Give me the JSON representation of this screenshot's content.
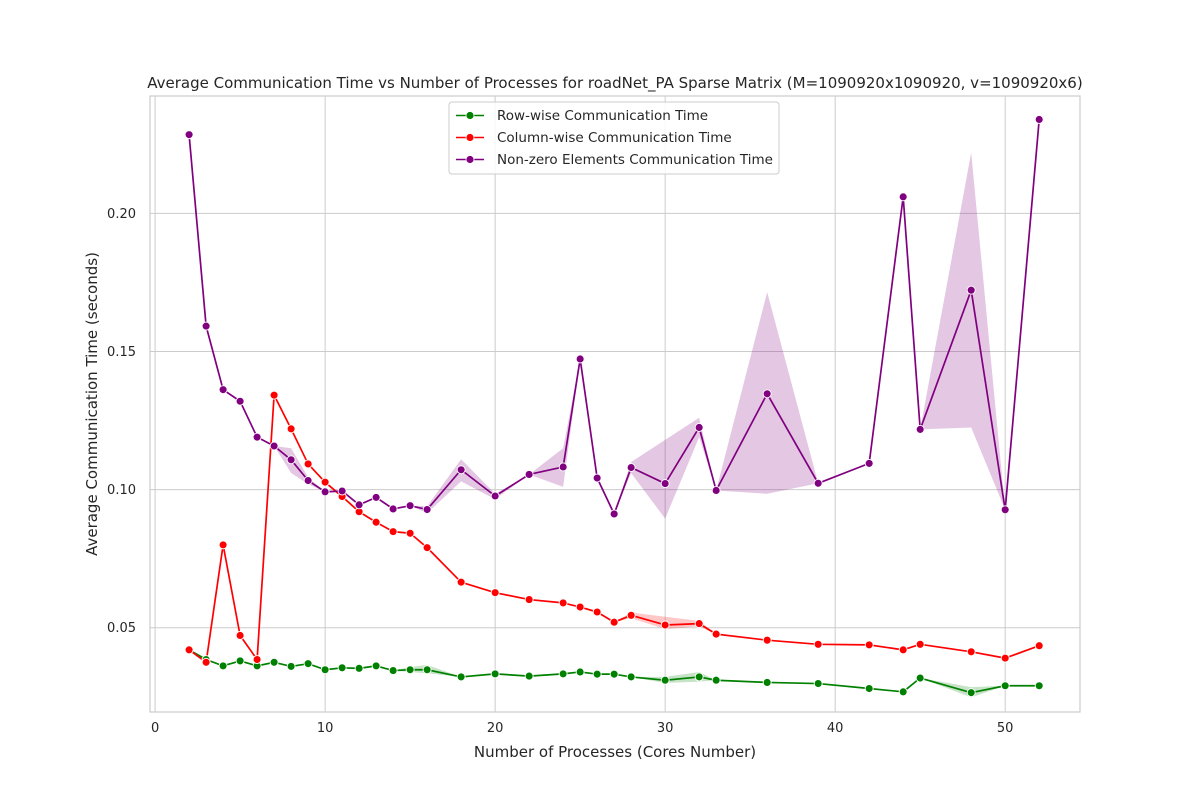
{
  "chart_data": {
    "type": "line",
    "title": "Average Communication Time vs Number of Processes for roadNet_PA Sparse Matrix (M=1090920x1090920, v=1090920x6)",
    "xlabel": "Number of Processes (Cores Number)",
    "ylabel": "Average Communication Time (seconds)",
    "xlim": [
      -0.3,
      54.4
    ],
    "ylim": [
      0.0195,
      0.2425
    ],
    "xticks": [
      0,
      10,
      20,
      30,
      40,
      50
    ],
    "yticks": [
      0.05,
      0.1,
      0.15,
      0.2
    ],
    "ytick_labels": [
      "0.05",
      "0.10",
      "0.15",
      "0.20"
    ],
    "grid": true,
    "legend_position": "top-center",
    "series": [
      {
        "name": "Row-wise Communication Time",
        "color": "#008000",
        "x": [
          2,
          3,
          4,
          5,
          6,
          7,
          8,
          9,
          10,
          11,
          12,
          13,
          14,
          15,
          16,
          18,
          20,
          22,
          24,
          25,
          26,
          27,
          28,
          30,
          32,
          33,
          36,
          39,
          42,
          44,
          45,
          48,
          50,
          52
        ],
        "y": [
          0.042,
          0.0385,
          0.0362,
          0.038,
          0.0362,
          0.0375,
          0.036,
          0.037,
          0.0348,
          0.0355,
          0.0353,
          0.0362,
          0.0345,
          0.0348,
          0.0348,
          0.0322,
          0.0333,
          0.0325,
          0.0333,
          0.034,
          0.0332,
          0.0332,
          0.0322,
          0.031,
          0.0322,
          0.031,
          0.0302,
          0.0298,
          0.028,
          0.0268,
          0.0318,
          0.0265,
          0.029,
          0.029
        ],
        "band": [
          {
            "x": 15,
            "lo": 0.034,
            "hi": 0.0358
          },
          {
            "x": 16,
            "lo": 0.0335,
            "hi": 0.0365
          },
          {
            "x": 30,
            "lo": 0.03,
            "hi": 0.0322
          },
          {
            "x": 32,
            "lo": 0.0305,
            "hi": 0.034
          },
          {
            "x": 48,
            "lo": 0.0248,
            "hi": 0.0285
          }
        ]
      },
      {
        "name": "Column-wise Communication Time",
        "color": "#ff0000",
        "x": [
          2,
          3,
          4,
          5,
          6,
          7,
          8,
          9,
          10,
          11,
          12,
          13,
          14,
          15,
          16,
          18,
          20,
          22,
          24,
          25,
          26,
          27,
          28,
          30,
          32,
          33,
          36,
          39,
          42,
          44,
          45,
          48,
          50,
          52
        ],
        "y": [
          0.042,
          0.0375,
          0.08,
          0.0472,
          0.0385,
          0.1342,
          0.122,
          0.1093,
          0.1027,
          0.0975,
          0.092,
          0.0882,
          0.0848,
          0.0842,
          0.079,
          0.0665,
          0.0627,
          0.0602,
          0.059,
          0.0575,
          0.0557,
          0.052,
          0.0545,
          0.051,
          0.0515,
          0.0477,
          0.0455,
          0.044,
          0.0438,
          0.042,
          0.044,
          0.0413,
          0.039,
          0.0435
        ],
        "band": [
          {
            "x": 28,
            "lo": 0.0535,
            "hi": 0.0555
          },
          {
            "x": 30,
            "lo": 0.0495,
            "hi": 0.054
          },
          {
            "x": 32,
            "lo": 0.0505,
            "hi": 0.0525
          }
        ]
      },
      {
        "name": "Non-zero Elements Communication Time",
        "color": "#800080",
        "x": [
          2,
          3,
          4,
          5,
          6,
          7,
          8,
          9,
          10,
          11,
          12,
          13,
          14,
          15,
          16,
          18,
          20,
          22,
          24,
          25,
          26,
          27,
          28,
          30,
          32,
          33,
          36,
          39,
          42,
          44,
          45,
          48,
          50,
          52
        ],
        "y": [
          0.2285,
          0.1592,
          0.1362,
          0.132,
          0.119,
          0.1158,
          0.1108,
          0.1033,
          0.0992,
          0.0995,
          0.0945,
          0.0972,
          0.093,
          0.0942,
          0.0928,
          0.1072,
          0.0977,
          0.1055,
          0.1082,
          0.1473,
          0.1042,
          0.0912,
          0.108,
          0.1022,
          0.1225,
          0.0997,
          0.1347,
          0.1023,
          0.1095,
          0.206,
          0.1218,
          0.1722,
          0.0927,
          0.234
        ],
        "band": [
          {
            "x": 8,
            "lo": 0.106,
            "hi": 0.115
          },
          {
            "x": 9,
            "lo": 0.102,
            "hi": 0.1045
          },
          {
            "x": 16,
            "lo": 0.0915,
            "hi": 0.094
          },
          {
            "x": 18,
            "lo": 0.103,
            "hi": 0.111
          },
          {
            "x": 20,
            "lo": 0.0965,
            "hi": 0.0985
          },
          {
            "x": 24,
            "lo": 0.101,
            "hi": 0.115
          },
          {
            "x": 28,
            "lo": 0.106,
            "hi": 0.11
          },
          {
            "x": 30,
            "lo": 0.0895,
            "hi": 0.118
          },
          {
            "x": 32,
            "lo": 0.119,
            "hi": 0.126
          },
          {
            "x": 36,
            "lo": 0.0985,
            "hi": 0.1715
          },
          {
            "x": 48,
            "lo": 0.1225,
            "hi": 0.222
          }
        ]
      }
    ]
  }
}
